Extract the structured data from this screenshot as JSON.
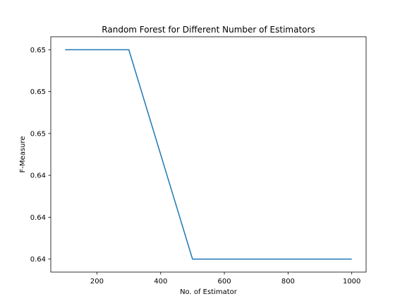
{
  "chart_data": {
    "type": "line",
    "title": "Random Forest for Different Number of Estimators",
    "xlabel": "No. of Estimator",
    "ylabel": "F-Measure",
    "x": [
      100,
      300,
      500,
      1000
    ],
    "series": [
      {
        "values": [
          0.65,
          0.65,
          0.64,
          0.64
        ]
      }
    ],
    "xlim": [
      55,
      1045
    ],
    "ylim": [
      0.63938,
      0.65062
    ],
    "xticks": [
      200,
      400,
      600,
      800,
      1000
    ],
    "xtick_labels": [
      "200",
      "400",
      "600",
      "800",
      "1000"
    ],
    "yticks": [
      0.64,
      0.642,
      0.644,
      0.646,
      0.648,
      0.65
    ],
    "ytick_labels": [
      "0.64",
      "0.64",
      "0.64",
      "0.65",
      "0.65",
      "0.65"
    ],
    "grid": false,
    "legend": false,
    "line_color": "#1f77b4"
  }
}
